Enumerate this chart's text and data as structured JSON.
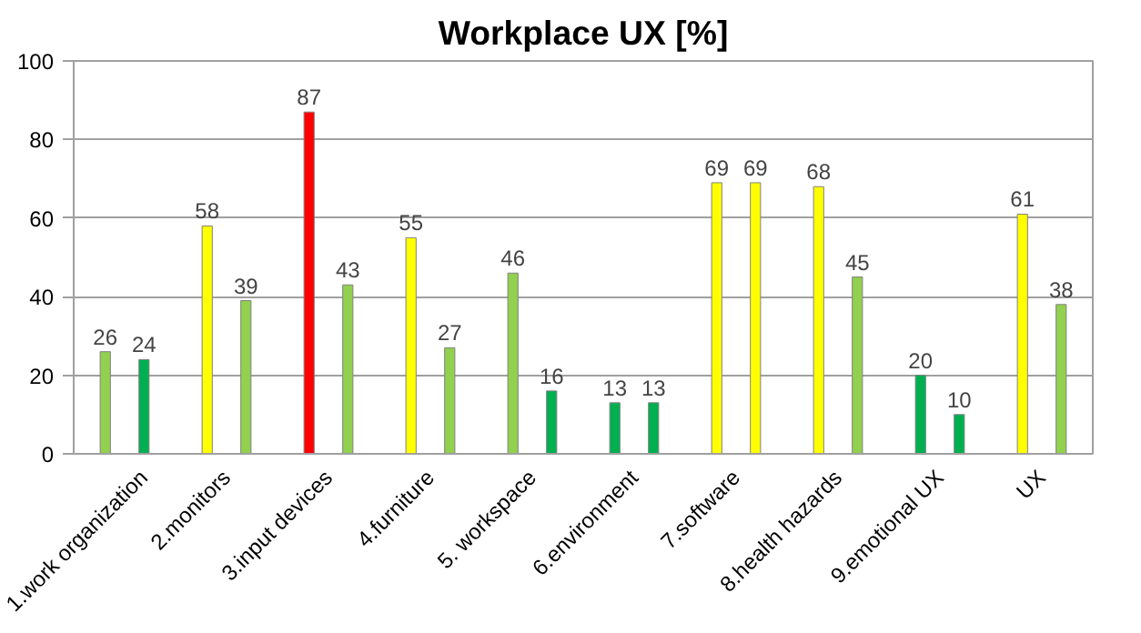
{
  "chart_data": {
    "type": "bar",
    "title": "Workplace UX [%]",
    "categories": [
      "1.work organization",
      "2.monitors",
      "3.input devices",
      "4.furniture",
      "5. workspace",
      "6.environment",
      "7.software",
      "8.health hazards",
      "9.emotional UX",
      "UX"
    ],
    "series": [
      {
        "colors": [
          "#92d050",
          "#ffff00",
          "#ff0000",
          "#ffff00",
          "#92d050",
          "#00b050",
          "#ffff00",
          "#ffff00",
          "#00b050",
          "#ffff00"
        ],
        "values": [
          26,
          58,
          87,
          55,
          46,
          13,
          69,
          68,
          20,
          61
        ]
      },
      {
        "colors": [
          "#00b050",
          "#92d050",
          "#92d050",
          "#92d050",
          "#00b050",
          "#00b050",
          "#ffff00",
          "#92d050",
          "#00b050",
          "#92d050"
        ],
        "values": [
          24,
          39,
          43,
          27,
          16,
          13,
          69,
          45,
          10,
          38
        ]
      }
    ],
    "ylim": [
      0,
      100
    ],
    "yticks": [
      0,
      20,
      40,
      60,
      80,
      100
    ],
    "grid": "y",
    "data_labels": true
  }
}
